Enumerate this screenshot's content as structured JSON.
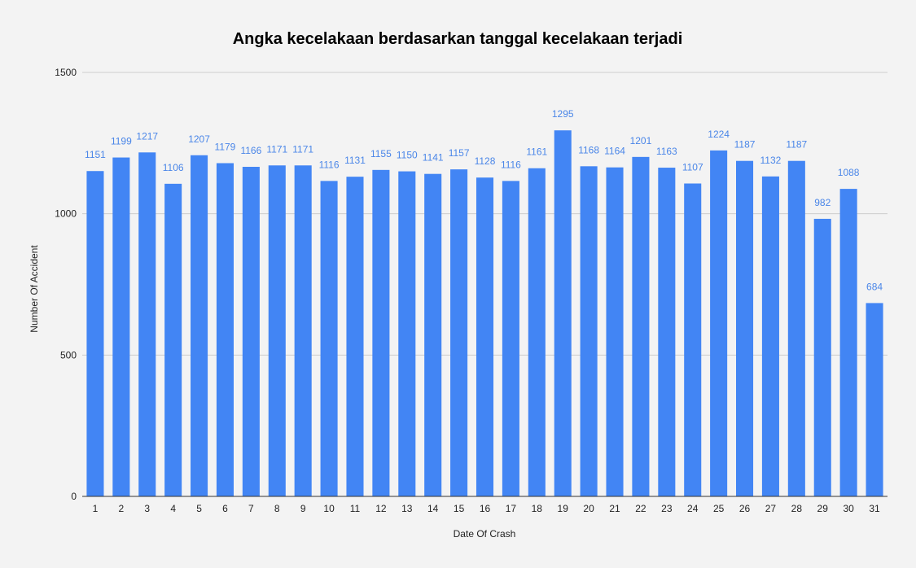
{
  "chart_data": {
    "type": "bar",
    "title": "Angka kecelakaan berdasarkan tanggal kecelakaan terjadi",
    "xlabel": "Date Of Crash",
    "ylabel": "Number Of Accident",
    "categories": [
      "1",
      "2",
      "3",
      "4",
      "5",
      "6",
      "7",
      "8",
      "9",
      "10",
      "11",
      "12",
      "13",
      "14",
      "15",
      "16",
      "17",
      "18",
      "19",
      "20",
      "21",
      "22",
      "23",
      "24",
      "25",
      "26",
      "27",
      "28",
      "29",
      "30",
      "31"
    ],
    "values": [
      1151,
      1199,
      1217,
      1106,
      1207,
      1179,
      1166,
      1171,
      1171,
      1116,
      1131,
      1155,
      1150,
      1141,
      1157,
      1128,
      1116,
      1161,
      1295,
      1168,
      1164,
      1201,
      1163,
      1107,
      1224,
      1187,
      1132,
      1187,
      982,
      1088,
      684
    ],
    "ylim": [
      0,
      1500
    ],
    "yticks": [
      0,
      500,
      1000,
      1500
    ],
    "grid": true,
    "legend": "none",
    "colors": {
      "bar": "#4285f4",
      "data_label": "#4a86e8",
      "background": "#f3f3f3",
      "grid": "#cccccc"
    }
  }
}
